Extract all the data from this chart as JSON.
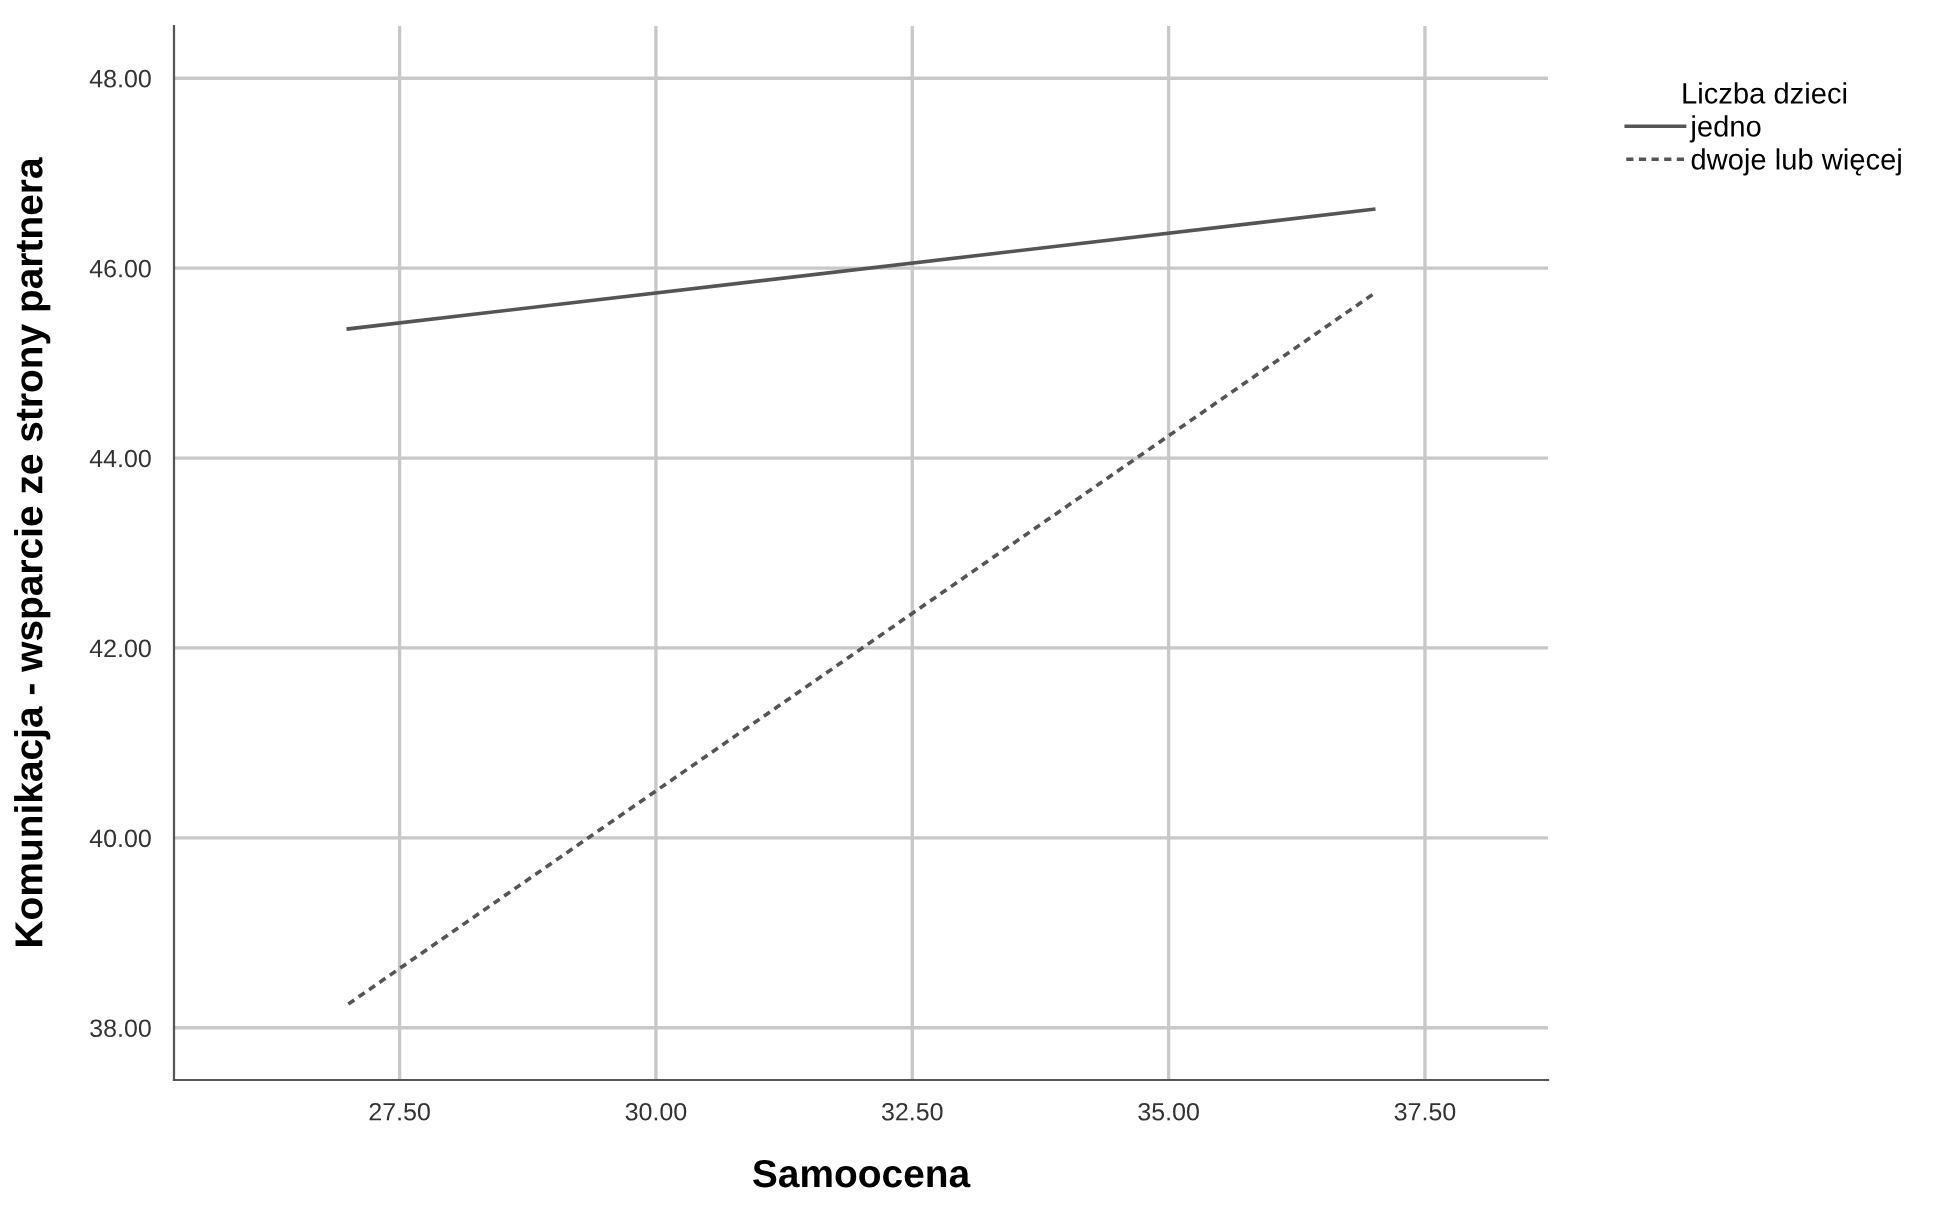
{
  "chart_data": {
    "type": "line",
    "xlabel": "Samoocena",
    "ylabel": "Komunikacja - wsparcie ze strony partnera",
    "legend_title": "Liczba dzieci",
    "legend": "top right",
    "grid": true,
    "xlim": [
      25.3,
      38.7
    ],
    "xticks": [
      {
        "value": 27.5,
        "label": "27.50"
      },
      {
        "value": 30,
        "label": "30.00"
      },
      {
        "value": 32.5,
        "label": "32.50"
      },
      {
        "value": 35,
        "label": "35.00"
      },
      {
        "value": 37.5,
        "label": "37.50"
      }
    ],
    "ylim": [
      37.45,
      48.55
    ],
    "yticks": [
      {
        "value": 38,
        "label": "38.00"
      },
      {
        "value": 40,
        "label": "40.00"
      },
      {
        "value": 42,
        "label": "42.00"
      },
      {
        "value": 44,
        "label": "44.00"
      },
      {
        "value": 46,
        "label": "46.00"
      },
      {
        "value": 48,
        "label": "48.00"
      }
    ],
    "x": [
      27,
      37
    ],
    "series": [
      {
        "name": "jedno",
        "color": "#555555",
        "line_style": "solid",
        "values": [
          45.36,
          46.62
        ]
      },
      {
        "name": "dwoje lub więcej",
        "color": "#555555",
        "line_style": "dotted",
        "values": [
          38.25,
          45.73
        ]
      }
    ]
  }
}
